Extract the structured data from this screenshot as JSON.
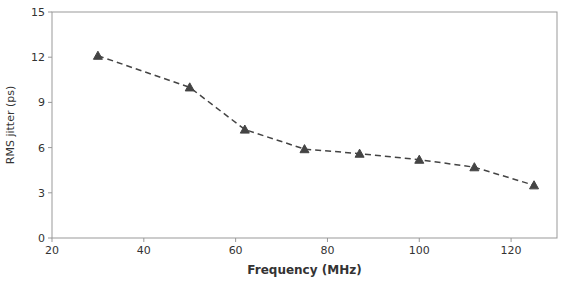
{
  "chart_data": {
    "type": "line",
    "x": [
      30,
      50,
      62,
      75,
      87,
      100,
      112,
      125
    ],
    "values": [
      12.1,
      10.0,
      7.2,
      5.9,
      5.6,
      5.2,
      4.7,
      3.5
    ],
    "xlabel": "Frequency (MHz)",
    "ylabel": "RMS jitter (ps)",
    "xlim": [
      20,
      130
    ],
    "ylim": [
      0,
      15
    ],
    "xticks": [
      20,
      40,
      60,
      80,
      100,
      120
    ],
    "yticks": [
      0,
      3,
      6,
      9,
      12,
      15
    ],
    "color": "#444444",
    "marker": "triangle",
    "line_style": "dashed",
    "grid": false
  }
}
